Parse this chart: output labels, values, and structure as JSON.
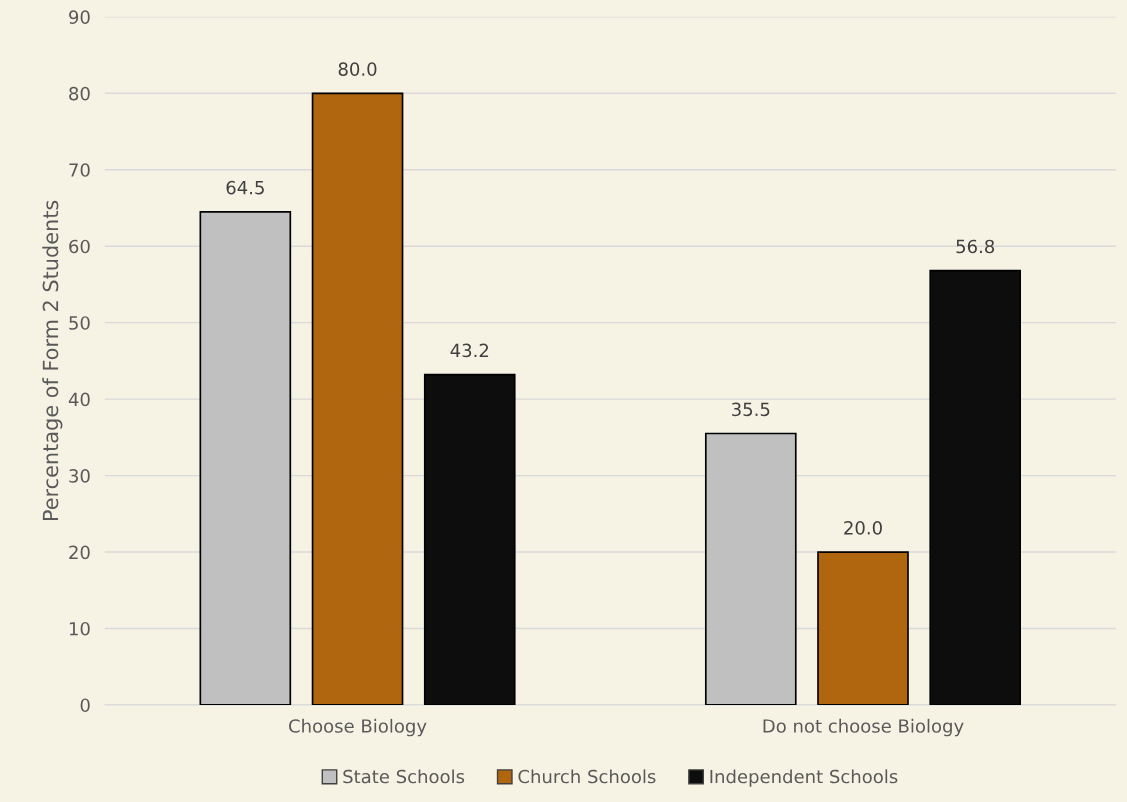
{
  "chart_data": {
    "type": "bar",
    "ylabel": "Percentage of Form 2 Students",
    "categories": [
      "Choose Biology",
      "Do not choose Biology"
    ],
    "series": [
      {
        "name": "State Schools",
        "color": "#c0c0c0",
        "values": [
          64.5,
          35.5
        ]
      },
      {
        "name": "Church Schools",
        "color": "#b0650f",
        "values": [
          80.0,
          20.0
        ]
      },
      {
        "name": "Independent Schools",
        "color": "#0d0d0d",
        "values": [
          43.2,
          56.8
        ]
      }
    ],
    "value_labels": [
      [
        "64.5",
        "35.5"
      ],
      [
        "80.0",
        "20.0"
      ],
      [
        "43.2",
        "56.8"
      ]
    ],
    "ylim": [
      0,
      90
    ],
    "yticks": [
      0,
      10,
      20,
      30,
      40,
      50,
      60,
      70,
      80,
      90
    ],
    "grid": "y",
    "legend": "bottom"
  }
}
